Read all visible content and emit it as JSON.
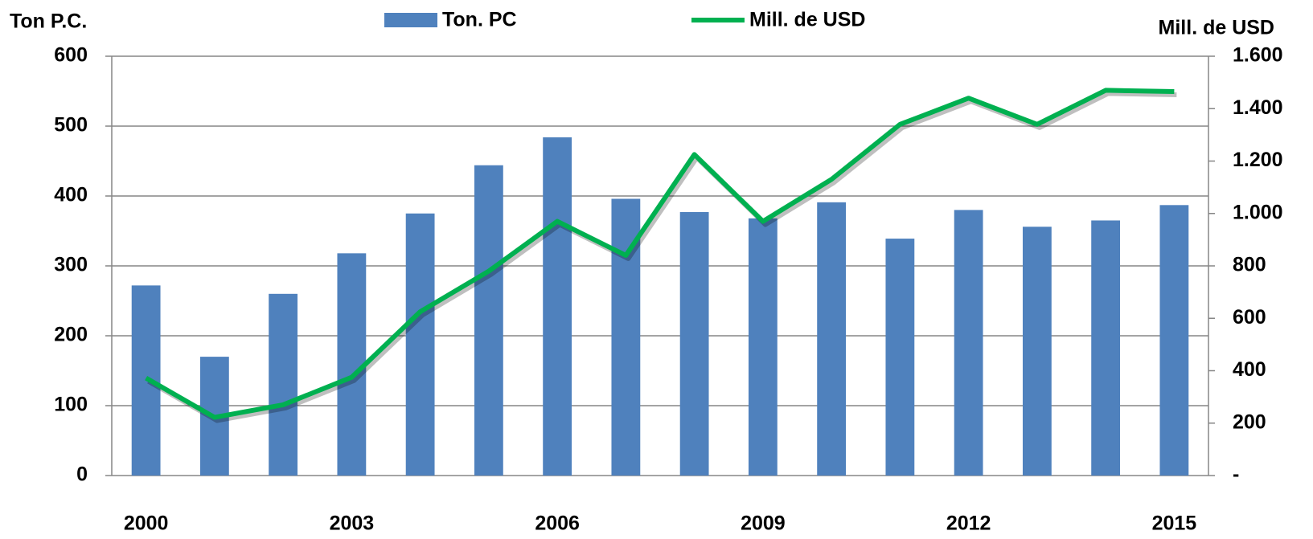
{
  "chart_data": {
    "type": "bar",
    "y_label": "Ton P.C.",
    "y2_label": "Mill. de USD",
    "categories": [
      "2000",
      null,
      null,
      "2003",
      null,
      null,
      "2006",
      null,
      null,
      "2009",
      null,
      null,
      "2012",
      null,
      null,
      "2015"
    ],
    "series": [
      {
        "name": "Ton. PC",
        "type": "bar",
        "color": "#4f81bd",
        "values": [
          272,
          170,
          260,
          318,
          375,
          444,
          484,
          396,
          377,
          368,
          391,
          339,
          380,
          356,
          365,
          387
        ]
      },
      {
        "name": "Mill. de USD",
        "type": "line",
        "axis": "y2",
        "color": "#00b050",
        "values": [
          372,
          222,
          270,
          375,
          625,
          780,
          970,
          840,
          1225,
          970,
          1130,
          1340,
          1440,
          1340,
          1470,
          1465
        ]
      }
    ],
    "ylim": [
      0,
      600
    ],
    "yticks": [
      0,
      100,
      200,
      300,
      400,
      500,
      600
    ],
    "y2lim": [
      0,
      1600
    ],
    "y2ticks": [
      {
        "value": 0,
        "label": "-"
      },
      200,
      400,
      600,
      800,
      {
        "value": 1000,
        "label": "1.000"
      },
      {
        "value": 1200,
        "label": "1.200"
      },
      {
        "value": 1400,
        "label": "1.400"
      },
      {
        "value": 1600,
        "label": "1.600"
      }
    ],
    "grid": true,
    "legend": "top"
  }
}
